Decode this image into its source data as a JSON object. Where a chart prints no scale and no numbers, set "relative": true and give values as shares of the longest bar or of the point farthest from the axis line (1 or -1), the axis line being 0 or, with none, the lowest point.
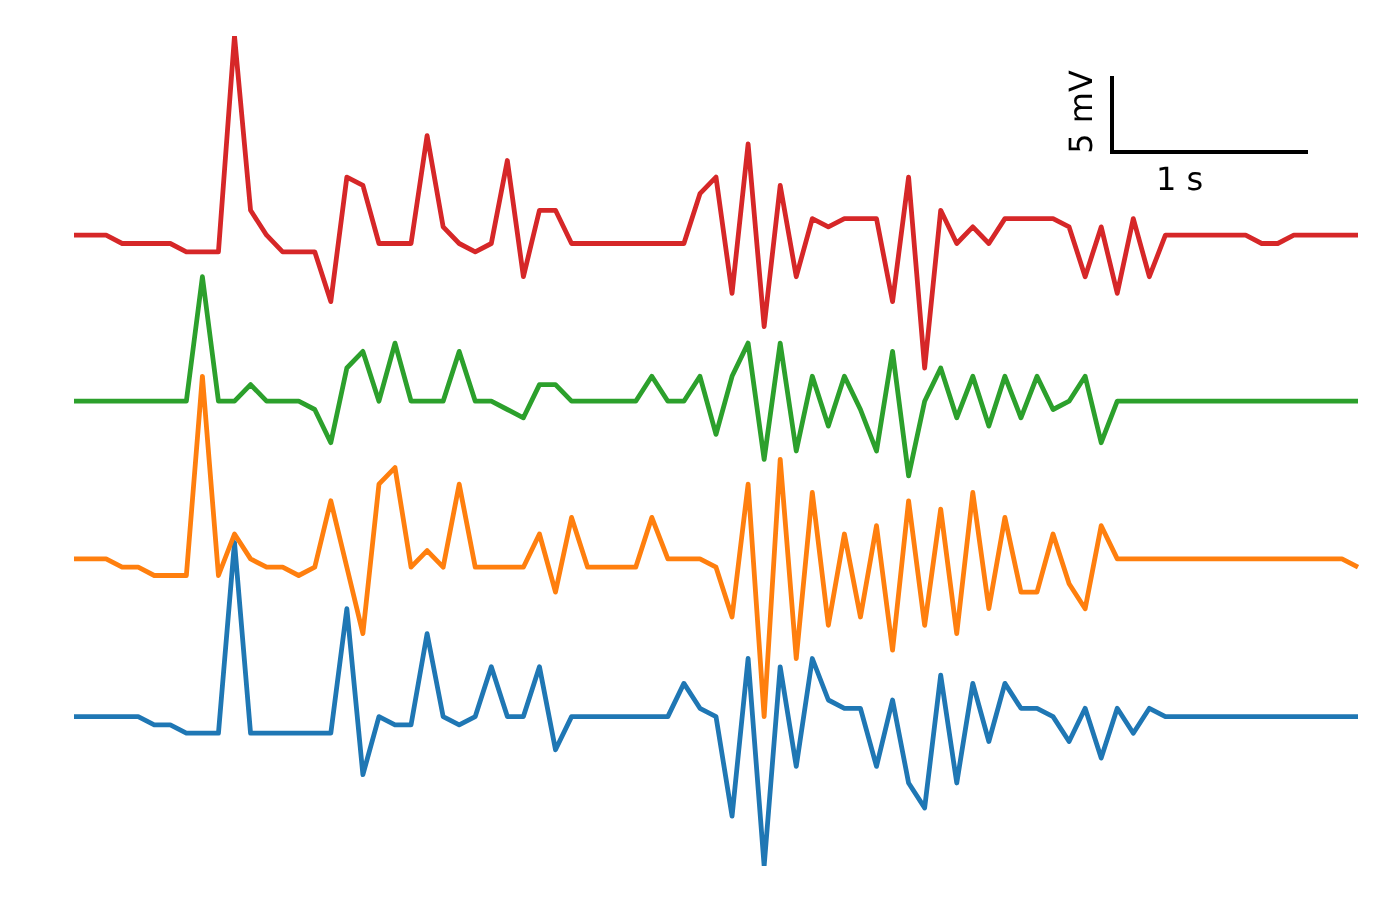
{
  "chart_data": {
    "type": "line",
    "relative": true,
    "marker": "none",
    "line_style": "solid",
    "categories": [
      null,
      null,
      null,
      null,
      null,
      null,
      null,
      null,
      null,
      null,
      null,
      null,
      null,
      null,
      null,
      null,
      null,
      null,
      null,
      null,
      null,
      null,
      null,
      null,
      null,
      null,
      null,
      null,
      null,
      null,
      null,
      null,
      null,
      null,
      null,
      null,
      null,
      null,
      null,
      null,
      null,
      null,
      null,
      null,
      null,
      null,
      null,
      null,
      null,
      null,
      null,
      null,
      null,
      null,
      null,
      null,
      null,
      null,
      null,
      null,
      null,
      null,
      null,
      null,
      null,
      null,
      null,
      null,
      null,
      null,
      null,
      null,
      null,
      null,
      null,
      null,
      null,
      null,
      null,
      null,
      null
    ],
    "series": [
      {
        "color": "#d62728",
        "values": [
          0.76,
          0.76,
          0.76,
          0.75,
          0.75,
          0.75,
          0.75,
          0.74,
          0.74,
          0.74,
          1.0,
          0.79,
          0.76,
          0.74,
          0.74,
          0.74,
          0.68,
          0.83,
          0.82,
          0.75,
          0.75,
          0.75,
          0.88,
          0.77,
          0.75,
          0.74,
          0.75,
          0.85,
          0.71,
          0.79,
          0.79,
          0.75,
          0.75,
          0.75,
          0.75,
          0.75,
          0.75,
          0.75,
          0.75,
          0.81,
          0.83,
          0.69,
          0.87,
          0.65,
          0.82,
          0.71,
          0.78,
          0.77,
          0.78,
          0.78,
          0.78,
          0.68,
          0.83,
          0.6,
          0.79,
          0.75,
          0.77,
          0.75,
          0.78,
          0.78,
          0.78,
          0.78,
          0.77,
          0.71,
          0.77,
          0.69,
          0.78,
          0.71,
          0.76,
          0.76,
          0.76,
          0.76,
          0.76,
          0.76,
          0.75,
          0.75,
          0.76,
          0.76,
          0.76,
          0.76,
          0.76
        ]
      },
      {
        "color": "#2ca02c",
        "values": [
          0.56,
          0.56,
          0.56,
          0.56,
          0.56,
          0.56,
          0.56,
          0.56,
          0.71,
          0.56,
          0.56,
          0.58,
          0.56,
          0.56,
          0.56,
          0.55,
          0.51,
          0.6,
          0.62,
          0.56,
          0.63,
          0.56,
          0.56,
          0.56,
          0.62,
          0.56,
          0.56,
          0.55,
          0.54,
          0.58,
          0.58,
          0.56,
          0.56,
          0.56,
          0.56,
          0.56,
          0.59,
          0.56,
          0.56,
          0.59,
          0.52,
          0.59,
          0.63,
          0.49,
          0.63,
          0.5,
          0.59,
          0.53,
          0.59,
          0.55,
          0.5,
          0.62,
          0.47,
          0.56,
          0.6,
          0.54,
          0.59,
          0.53,
          0.59,
          0.54,
          0.59,
          0.55,
          0.56,
          0.59,
          0.51,
          0.56,
          0.56,
          0.56,
          0.56,
          0.56,
          0.56,
          0.56,
          0.56,
          0.56,
          0.56,
          0.56,
          0.56,
          0.56,
          0.56,
          0.56,
          0.56
        ]
      },
      {
        "color": "#ff7f0e",
        "values": [
          0.37,
          0.37,
          0.37,
          0.36,
          0.36,
          0.35,
          0.35,
          0.35,
          0.59,
          0.35,
          0.4,
          0.37,
          0.36,
          0.36,
          0.35,
          0.36,
          0.44,
          0.36,
          0.28,
          0.46,
          0.48,
          0.36,
          0.38,
          0.36,
          0.46,
          0.36,
          0.36,
          0.36,
          0.36,
          0.4,
          0.33,
          0.42,
          0.36,
          0.36,
          0.36,
          0.36,
          0.42,
          0.37,
          0.37,
          0.37,
          0.36,
          0.3,
          0.46,
          0.18,
          0.49,
          0.25,
          0.45,
          0.29,
          0.4,
          0.3,
          0.41,
          0.26,
          0.44,
          0.29,
          0.43,
          0.28,
          0.45,
          0.31,
          0.42,
          0.33,
          0.33,
          0.4,
          0.34,
          0.31,
          0.41,
          0.37,
          0.37,
          0.37,
          0.37,
          0.37,
          0.37,
          0.37,
          0.37,
          0.37,
          0.37,
          0.37,
          0.37,
          0.37,
          0.37,
          0.37,
          0.36
        ]
      },
      {
        "color": "#1f77b4",
        "values": [
          0.18,
          0.18,
          0.18,
          0.18,
          0.18,
          0.17,
          0.17,
          0.16,
          0.16,
          0.16,
          0.39,
          0.16,
          0.16,
          0.16,
          0.16,
          0.16,
          0.16,
          0.31,
          0.11,
          0.18,
          0.17,
          0.17,
          0.28,
          0.18,
          0.17,
          0.18,
          0.24,
          0.18,
          0.18,
          0.24,
          0.14,
          0.18,
          0.18,
          0.18,
          0.18,
          0.18,
          0.18,
          0.18,
          0.22,
          0.19,
          0.18,
          0.06,
          0.25,
          0,
          0.24,
          0.12,
          0.25,
          0.2,
          0.19,
          0.19,
          0.12,
          0.2,
          0.1,
          0.07,
          0.23,
          0.1,
          0.22,
          0.15,
          0.22,
          0.19,
          0.19,
          0.18,
          0.15,
          0.19,
          0.13,
          0.19,
          0.16,
          0.19,
          0.18,
          0.18,
          0.18,
          0.18,
          0.18,
          0.18,
          0.18,
          0.18,
          0.18,
          0.18,
          0.18,
          0.18,
          0.18
        ]
      }
    ],
    "annotations": [
      "5 mV",
      "1 s"
    ]
  }
}
